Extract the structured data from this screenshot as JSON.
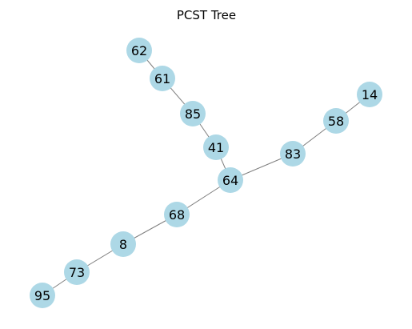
{
  "title": "PCST Tree",
  "colors": {
    "node_fill": "#add8e6",
    "edge_stroke": "#7f7f7f",
    "label": "#000000"
  },
  "nodes": [
    {
      "id": "62",
      "label": "62"
    },
    {
      "id": "61",
      "label": "61"
    },
    {
      "id": "85",
      "label": "85"
    },
    {
      "id": "41",
      "label": "41"
    },
    {
      "id": "64",
      "label": "64"
    },
    {
      "id": "83",
      "label": "83"
    },
    {
      "id": "58",
      "label": "58"
    },
    {
      "id": "14",
      "label": "14"
    },
    {
      "id": "68",
      "label": "68"
    },
    {
      "id": "8",
      "label": "8"
    },
    {
      "id": "73",
      "label": "73"
    },
    {
      "id": "95",
      "label": "95"
    }
  ],
  "edges": [
    {
      "source": "62",
      "target": "61"
    },
    {
      "source": "61",
      "target": "85"
    },
    {
      "source": "85",
      "target": "41"
    },
    {
      "source": "41",
      "target": "64"
    },
    {
      "source": "64",
      "target": "83"
    },
    {
      "source": "83",
      "target": "58"
    },
    {
      "source": "58",
      "target": "14"
    },
    {
      "source": "64",
      "target": "68"
    },
    {
      "source": "68",
      "target": "8"
    },
    {
      "source": "8",
      "target": "73"
    },
    {
      "source": "73",
      "target": "95"
    }
  ]
}
